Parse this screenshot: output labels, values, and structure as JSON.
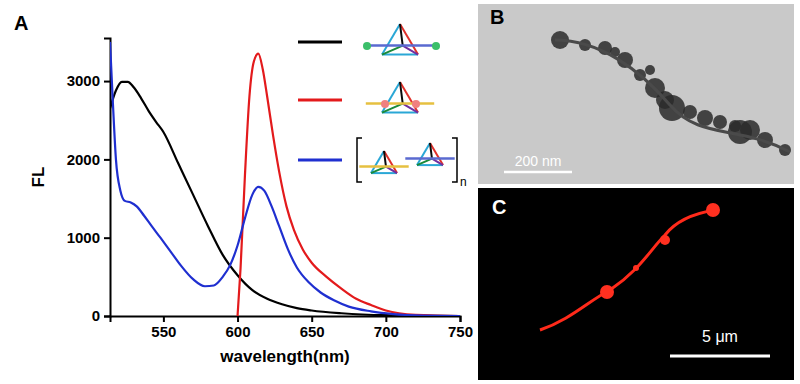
{
  "chart_data": {
    "type": "line",
    "x_label": "wavelength(nm)",
    "y_label": "FL",
    "xlim": [
      514,
      750
    ],
    "ylim": [
      0,
      3550
    ],
    "xticks": [
      550,
      600,
      650,
      700,
      750
    ],
    "yticks": [
      0,
      1000,
      2000,
      3000
    ],
    "grid": false,
    "legend": "upper right",
    "series": [
      {
        "color": "#000000",
        "x": [
          514,
          518,
          522,
          526,
          530,
          535,
          540,
          545,
          550,
          560,
          570,
          580,
          590,
          600,
          610,
          620,
          630,
          640,
          650,
          670,
          700,
          750
        ],
        "values": [
          2650,
          2880,
          2990,
          2990,
          2920,
          2780,
          2620,
          2480,
          2350,
          1950,
          1550,
          1150,
          780,
          520,
          330,
          220,
          150,
          100,
          70,
          35,
          10,
          0
        ]
      },
      {
        "color": "#e31a1c",
        "x": [
          600,
          602,
          605,
          608,
          611,
          614,
          617,
          620,
          624,
          628,
          633,
          638,
          644,
          650,
          660,
          670,
          680,
          690,
          700,
          720,
          750
        ],
        "values": [
          0,
          600,
          1800,
          2800,
          3250,
          3350,
          3150,
          2800,
          2300,
          1850,
          1400,
          1100,
          850,
          680,
          500,
          350,
          220,
          140,
          70,
          15,
          0
        ]
      },
      {
        "color": "#1f2fd0",
        "x": [
          514,
          516,
          518,
          521,
          524,
          528,
          532,
          537,
          542,
          548,
          555,
          562,
          570,
          578,
          584,
          590,
          595,
          600,
          605,
          610,
          614,
          618,
          623,
          628,
          634,
          640,
          648,
          656,
          665,
          675,
          690,
          705,
          725,
          750
        ],
        "values": [
          3500,
          2700,
          2000,
          1600,
          1470,
          1450,
          1400,
          1280,
          1150,
          1000,
          820,
          640,
          470,
          380,
          390,
          500,
          650,
          900,
          1250,
          1550,
          1650,
          1600,
          1400,
          1150,
          850,
          620,
          430,
          300,
          200,
          120,
          60,
          25,
          5,
          0
        ]
      }
    ]
  },
  "panels": [
    {
      "label": "A",
      "icon_text": "n"
    },
    {
      "label": "B",
      "scale_bar": "200 nm"
    },
    {
      "label": "C",
      "scale_bar": "5 μm"
    }
  ]
}
